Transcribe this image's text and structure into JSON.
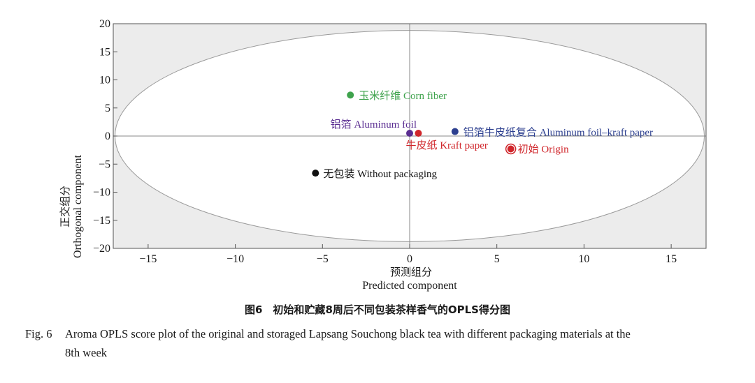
{
  "chart_data": {
    "type": "scatter",
    "xlabel_cn": "预测组分",
    "xlabel_en": "Predicted component",
    "ylabel_cn": "正交组分",
    "ylabel_en": "Orthogonal component",
    "xlim": [
      -17,
      17
    ],
    "ylim": [
      -20,
      20
    ],
    "xticks": [
      -15,
      -10,
      -5,
      0,
      5,
      10,
      15
    ],
    "yticks": [
      -20,
      -15,
      -10,
      -5,
      0,
      5,
      10,
      15,
      20
    ],
    "xtick_labels": [
      "−15",
      "−10",
      "−5",
      "0",
      "5",
      "10",
      "15"
    ],
    "ytick_labels": [
      "−20",
      "−15",
      "−10",
      "−5",
      "0",
      "5",
      "10",
      "15",
      "20"
    ],
    "ellipse": {
      "center": [
        0,
        0
      ],
      "rx": 16.9,
      "ry": 18.8
    },
    "points": [
      {
        "label": "玉米纤维 Corn fiber",
        "x": -3.4,
        "y": 7.3,
        "color": "#3fa34d"
      },
      {
        "label": "铝箔 Aluminum foil",
        "x": 0.0,
        "y": 0.5,
        "color": "#5a2d91"
      },
      {
        "label": "牛皮纸 Kraft paper",
        "x": 0.5,
        "y": 0.5,
        "color": "#d0262b"
      },
      {
        "label": "铝箔牛皮纸复合 Aluminum foil–kraft paper",
        "x": 2.6,
        "y": 0.8,
        "color": "#2c3f8f"
      },
      {
        "label": "初始 Origin",
        "x": 5.8,
        "y": -2.3,
        "color": "#d0262b"
      },
      {
        "label": "无包装 Without packaging",
        "x": -5.4,
        "y": -6.6,
        "color": "#111111"
      }
    ]
  },
  "caption_cn": "图6　初始和贮藏8周后不同包装茶样香气的OPLS得分图",
  "caption_en_no": "Fig. 6",
  "caption_en_line1": "Aroma OPLS score plot of the original and storaged Lapsang Souchong black tea with different packaging materials at the",
  "caption_en_line2": "8th week"
}
